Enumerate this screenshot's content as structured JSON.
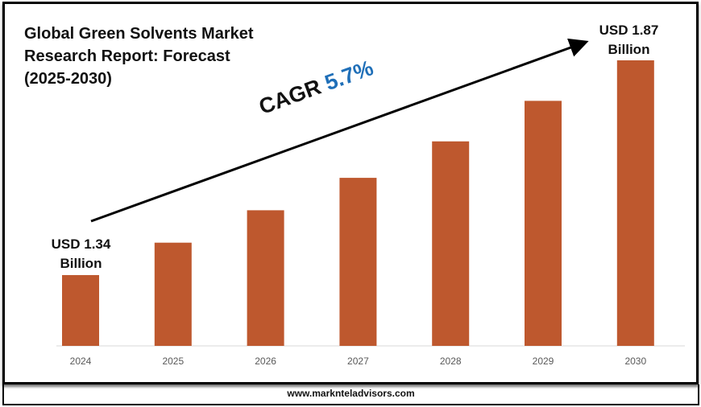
{
  "chart_data": {
    "type": "bar",
    "title": "Global Green Solvents Market Research Report: Forecast (2025-2030)",
    "categories": [
      "2024",
      "2025",
      "2026",
      "2027",
      "2028",
      "2029",
      "2030"
    ],
    "values": [
      1.34,
      1.42,
      1.5,
      1.58,
      1.67,
      1.77,
      1.87
    ],
    "unit": "USD Billion",
    "bar_color": "#BE582E",
    "annotations": {
      "start_label": "USD 1.34 Billion",
      "end_label": "USD 1.87 Billion",
      "cagr_prefix": "CAGR",
      "cagr_value": "5.7%"
    },
    "grid": false,
    "legend": "none"
  },
  "footer": {
    "website": "www.marknteladvisors.com"
  }
}
